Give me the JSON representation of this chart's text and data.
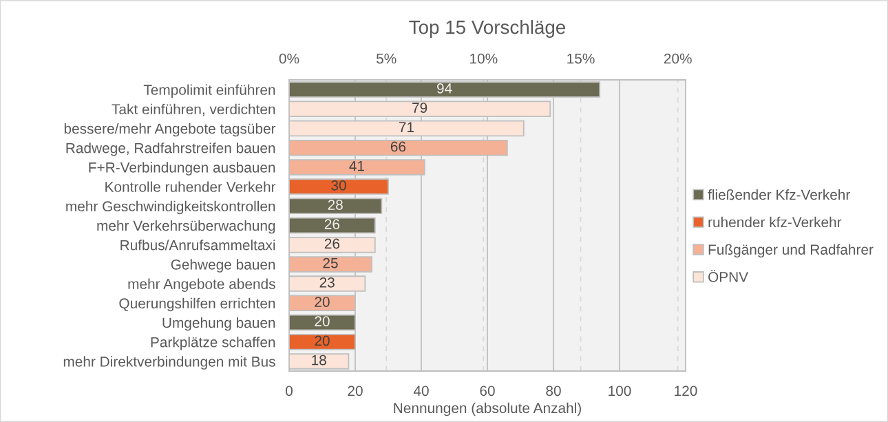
{
  "chart_data": {
    "type": "bar",
    "orientation": "horizontal",
    "stacked": true,
    "title": "Top 15 Vorschläge",
    "xlabel": "Nennungen (absolute Anzahl)",
    "categories": [
      "Tempolimit einführen",
      "Takt einführen, verdichten",
      "bessere/mehr Angebote tagsüber",
      "Radwege, Radfahrstreifen bauen",
      "F+R-Verbindungen ausbauen",
      "Kontrolle ruhender Verkehr",
      "mehr Geschwindigkeitskontrollen",
      "mehr Verkehrsüberwachung",
      "Rufbus/Anrufsammeltaxi",
      "Gehwege bauen",
      "mehr Angebote abends",
      "Querungshilfen errichten",
      "Umgehung bauen",
      "Parkplätze schaffen",
      "mehr Direktverbindungen mit Bus"
    ],
    "series": [
      {
        "name": "fließender Kfz-Verkehr",
        "color": "#6b6a52",
        "values": [
          94,
          null,
          null,
          null,
          null,
          null,
          28,
          26,
          null,
          null,
          null,
          null,
          20,
          null,
          null
        ]
      },
      {
        "name": "ruhender kfz-Verkehr",
        "color": "#e8622a",
        "values": [
          null,
          null,
          null,
          null,
          null,
          30,
          null,
          null,
          null,
          null,
          null,
          null,
          null,
          20,
          null
        ]
      },
      {
        "name": "Fußgänger und Radfahrer",
        "color": "#f4b196",
        "values": [
          null,
          null,
          null,
          66,
          41,
          null,
          null,
          null,
          null,
          25,
          null,
          20,
          null,
          null,
          null
        ]
      },
      {
        "name": "ÖPNV",
        "color": "#fce4d9",
        "values": [
          null,
          79,
          71,
          null,
          null,
          null,
          null,
          null,
          26,
          null,
          23,
          null,
          null,
          null,
          18
        ]
      }
    ],
    "data_labels": true,
    "xlim": [
      0,
      120
    ],
    "xticks": [
      0,
      20,
      40,
      60,
      80,
      100,
      120
    ],
    "x2lim": [
      0,
      20.4
    ],
    "x2ticks": [
      {
        "value": 0,
        "label": "0%"
      },
      {
        "value": 5,
        "label": "5%"
      },
      {
        "value": 10,
        "label": "10%"
      },
      {
        "value": 15,
        "label": "15%"
      },
      {
        "value": 20,
        "label": "20%"
      }
    ],
    "grid": true,
    "legend": "right"
  }
}
